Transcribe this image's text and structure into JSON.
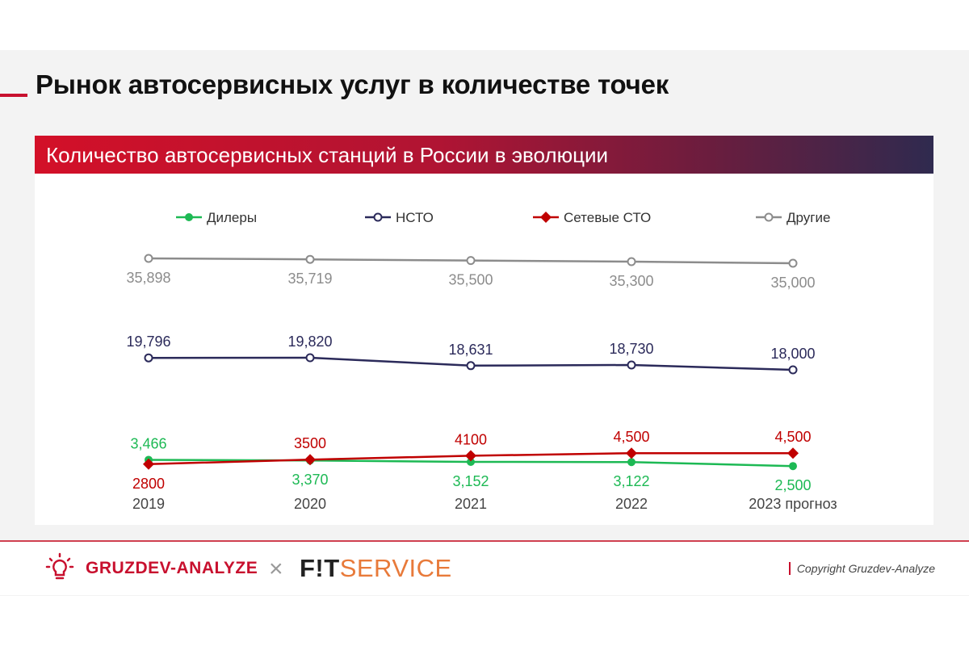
{
  "page": {
    "title": "Рынок автосервисных услуг в количестве точек",
    "banner": "Количество автосервисных станций в России в эволюции"
  },
  "footer": {
    "logo_left": "GRUZDEV-ANALYZE",
    "logo_sep": "×",
    "logo_right_a": "F!T",
    "logo_right_b": "SERVICE",
    "copyright": "Copyright Gruzdev-Analyze"
  },
  "colors": {
    "accent": "#c8102e",
    "dealers": "#1db954",
    "ncto": "#2b2a5a",
    "network": "#c00000",
    "other": "#8c8c8c"
  },
  "chart_data": {
    "type": "line",
    "categories": [
      "2019",
      "2020",
      "2021",
      "2022",
      "2023 прогноз"
    ],
    "legend_position": "top",
    "grid": false,
    "series": [
      {
        "name": "Дилеры",
        "key": "dealers",
        "marker": "circle-filled",
        "values": [
          3466,
          3370,
          3152,
          3122,
          2500
        ],
        "labels": [
          "3,466",
          "3,370",
          "3,152",
          "3,122",
          "2,500"
        ],
        "label_pos": [
          "above",
          "below",
          "below",
          "below",
          "below"
        ]
      },
      {
        "name": "НСТО",
        "key": "ncto",
        "marker": "circle-open",
        "values": [
          19796,
          19820,
          18631,
          18730,
          18000
        ],
        "labels": [
          "19,796",
          "19,820",
          "18,631",
          "18,730",
          "18,000"
        ],
        "label_pos": [
          "above",
          "above",
          "above",
          "above",
          "above"
        ]
      },
      {
        "name": "Сетевые СТО",
        "key": "network",
        "marker": "diamond",
        "values": [
          2800,
          3500,
          4100,
          4500,
          4500
        ],
        "labels": [
          "2800",
          "3500",
          "4100",
          "4,500",
          "4,500"
        ],
        "label_pos": [
          "below",
          "above",
          "above",
          "above",
          "above"
        ]
      },
      {
        "name": "Другие",
        "key": "other",
        "marker": "circle-open",
        "values": [
          35898,
          35719,
          35500,
          35300,
          35000
        ],
        "labels": [
          "35,898",
          "35,719",
          "35,500",
          "35,300",
          "35,000"
        ],
        "label_pos": [
          "below",
          "below",
          "below",
          "below",
          "below"
        ]
      }
    ]
  }
}
